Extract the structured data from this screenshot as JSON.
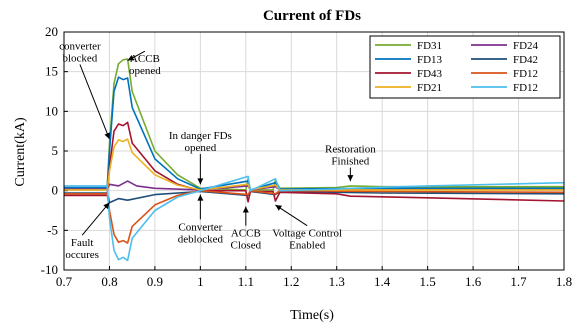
{
  "chart_data": {
    "type": "line",
    "title": "Current of FDs",
    "xlabel": "Time(s)",
    "ylabel": "Current(kA)",
    "xlim": [
      0.7,
      1.8
    ],
    "ylim": [
      -10,
      20
    ],
    "xticks": [
      "0.7",
      "0.8",
      "0.9",
      "1",
      "1.1",
      "1.2",
      "1.3",
      "1.4",
      "1.5",
      "1.6",
      "1.7",
      "1.8"
    ],
    "yticks": [
      "-10",
      "-5",
      "0",
      "5",
      "10",
      "15",
      "20"
    ],
    "grid": true,
    "legend_position": "top-right",
    "series": [
      {
        "name": "FD31",
        "color": "#77ac30",
        "points": [
          [
            0.7,
            0.3
          ],
          [
            0.795,
            0.3
          ],
          [
            0.8,
            6.0
          ],
          [
            0.81,
            13.5
          ],
          [
            0.82,
            16.0
          ],
          [
            0.83,
            16.5
          ],
          [
            0.84,
            16.6
          ],
          [
            0.85,
            12.5
          ],
          [
            0.9,
            5.0
          ],
          [
            0.95,
            2.0
          ],
          [
            1.0,
            0.3
          ],
          [
            1.1,
            0.1
          ],
          [
            1.105,
            1.5
          ],
          [
            1.11,
            0.1
          ],
          [
            1.16,
            0.1
          ],
          [
            1.165,
            1.3
          ],
          [
            1.175,
            0.3
          ],
          [
            1.3,
            0.4
          ],
          [
            1.33,
            0.6
          ],
          [
            1.4,
            0.5
          ],
          [
            1.8,
            0.5
          ]
        ]
      },
      {
        "name": "FD24",
        "color": "#7e2f8e",
        "points": [
          [
            0.7,
            0.2
          ],
          [
            0.795,
            0.2
          ],
          [
            0.8,
            0.8
          ],
          [
            0.82,
            0.6
          ],
          [
            0.84,
            1.2
          ],
          [
            0.86,
            0.6
          ],
          [
            0.9,
            0.3
          ],
          [
            1.0,
            0.1
          ],
          [
            1.105,
            0.6
          ],
          [
            1.11,
            0.1
          ],
          [
            1.165,
            0.5
          ],
          [
            1.175,
            0.1
          ],
          [
            1.4,
            0.2
          ],
          [
            1.8,
            0.2
          ]
        ]
      },
      {
        "name": "FD13",
        "color": "#0072bd",
        "points": [
          [
            0.7,
            0.4
          ],
          [
            0.795,
            0.4
          ],
          [
            0.8,
            5.0
          ],
          [
            0.81,
            12.5
          ],
          [
            0.82,
            14.3
          ],
          [
            0.83,
            14.0
          ],
          [
            0.84,
            14.2
          ],
          [
            0.85,
            10.5
          ],
          [
            0.9,
            4.0
          ],
          [
            0.95,
            1.5
          ],
          [
            1.0,
            0.2
          ],
          [
            1.105,
            1.2
          ],
          [
            1.11,
            0.1
          ],
          [
            1.165,
            1.0
          ],
          [
            1.175,
            0.2
          ],
          [
            1.4,
            0.3
          ],
          [
            1.8,
            0.3
          ]
        ]
      },
      {
        "name": "FD42",
        "color": "#1f4e79",
        "points": [
          [
            0.7,
            -0.3
          ],
          [
            0.795,
            -0.3
          ],
          [
            0.8,
            -1.5
          ],
          [
            0.82,
            -1.0
          ],
          [
            0.84,
            -1.2
          ],
          [
            0.9,
            -0.5
          ],
          [
            1.0,
            -0.1
          ],
          [
            1.105,
            -0.6
          ],
          [
            1.11,
            -0.1
          ],
          [
            1.165,
            -0.5
          ],
          [
            1.175,
            -0.1
          ],
          [
            1.4,
            -0.3
          ],
          [
            1.8,
            -0.4
          ]
        ]
      },
      {
        "name": "FD43",
        "color": "#a2142f",
        "points": [
          [
            0.7,
            -0.6
          ],
          [
            0.795,
            -0.6
          ],
          [
            0.8,
            3.0
          ],
          [
            0.81,
            7.5
          ],
          [
            0.82,
            8.4
          ],
          [
            0.83,
            8.2
          ],
          [
            0.84,
            8.6
          ],
          [
            0.85,
            6.0
          ],
          [
            0.9,
            2.5
          ],
          [
            0.95,
            0.8
          ],
          [
            1.0,
            0.0
          ],
          [
            1.1,
            0.0
          ],
          [
            1.105,
            -1.4
          ],
          [
            1.11,
            -0.1
          ],
          [
            1.16,
            -0.1
          ],
          [
            1.165,
            -1.3
          ],
          [
            1.175,
            -0.2
          ],
          [
            1.3,
            -0.4
          ],
          [
            1.33,
            -0.7
          ],
          [
            1.5,
            -0.9
          ],
          [
            1.8,
            -1.3
          ]
        ]
      },
      {
        "name": "FD12",
        "color": "#d95319",
        "points": [
          [
            0.7,
            -0.4
          ],
          [
            0.795,
            -0.4
          ],
          [
            0.8,
            -2.5
          ],
          [
            0.81,
            -5.5
          ],
          [
            0.82,
            -6.5
          ],
          [
            0.83,
            -6.3
          ],
          [
            0.84,
            -6.6
          ],
          [
            0.85,
            -4.5
          ],
          [
            0.9,
            -1.8
          ],
          [
            0.95,
            -0.6
          ],
          [
            1.0,
            0.0
          ],
          [
            1.105,
            -0.5
          ],
          [
            1.11,
            0.0
          ],
          [
            1.165,
            -0.4
          ],
          [
            1.175,
            0.0
          ],
          [
            1.4,
            -0.1
          ],
          [
            1.8,
            -0.2
          ]
        ]
      },
      {
        "name": "FD21",
        "color": "#edb120",
        "points": [
          [
            0.7,
            0.1
          ],
          [
            0.795,
            0.1
          ],
          [
            0.8,
            2.5
          ],
          [
            0.81,
            5.5
          ],
          [
            0.82,
            6.4
          ],
          [
            0.83,
            6.2
          ],
          [
            0.84,
            6.5
          ],
          [
            0.85,
            4.8
          ],
          [
            0.9,
            2.0
          ],
          [
            0.95,
            0.7
          ],
          [
            1.0,
            0.1
          ],
          [
            1.105,
            0.8
          ],
          [
            1.11,
            0.1
          ],
          [
            1.165,
            0.7
          ],
          [
            1.175,
            0.1
          ],
          [
            1.4,
            0.1
          ],
          [
            1.8,
            0.1
          ]
        ]
      },
      {
        "name": "FD12",
        "color": "#4dbeee",
        "points": [
          [
            0.7,
            0.6
          ],
          [
            0.795,
            0.6
          ],
          [
            0.8,
            -3.5
          ],
          [
            0.81,
            -7.5
          ],
          [
            0.82,
            -8.7
          ],
          [
            0.83,
            -8.4
          ],
          [
            0.84,
            -8.8
          ],
          [
            0.85,
            -6.0
          ],
          [
            0.9,
            -2.5
          ],
          [
            0.95,
            -0.8
          ],
          [
            1.0,
            0.0
          ],
          [
            1.105,
            1.8
          ],
          [
            1.11,
            0.0
          ],
          [
            1.165,
            1.5
          ],
          [
            1.175,
            0.0
          ],
          [
            1.3,
            0.2
          ],
          [
            1.33,
            0.3
          ],
          [
            1.5,
            0.6
          ],
          [
            1.8,
            1.0
          ]
        ]
      }
    ],
    "annotations": [
      {
        "lines": [
          "converter",
          "blocked"
        ],
        "x": 0.8,
        "y": 6.5,
        "tx": 0.735,
        "ty": 17.8
      },
      {
        "lines": [
          "ACCB",
          "opened"
        ],
        "x": 0.84,
        "y": 16.4,
        "tx": 0.878,
        "ty": 16.2
      },
      {
        "lines": [
          "In danger FDs",
          "opened"
        ],
        "x": 1.0,
        "y": 0.8,
        "tx": 1.0,
        "ty": 6.5
      },
      {
        "lines": [
          "Restoration",
          "Finished"
        ],
        "x": 1.33,
        "y": 1.2,
        "tx": 1.33,
        "ty": 4.8
      },
      {
        "lines": [
          "Fault",
          "occures"
        ],
        "x": 0.8,
        "y": -1.5,
        "tx": 0.74,
        "ty": -7.0
      },
      {
        "lines": [
          "Converter",
          "deblocked"
        ],
        "x": 1.0,
        "y": -0.5,
        "tx": 1.0,
        "ty": -5.0
      },
      {
        "lines": [
          "ACCB",
          "Closed"
        ],
        "x": 1.1,
        "y": -2.0,
        "tx": 1.1,
        "ty": -5.8
      },
      {
        "lines": [
          "Voltage Control",
          "Enabled"
        ],
        "x": 1.165,
        "y": -1.8,
        "tx": 1.235,
        "ty": -5.8
      }
    ]
  }
}
